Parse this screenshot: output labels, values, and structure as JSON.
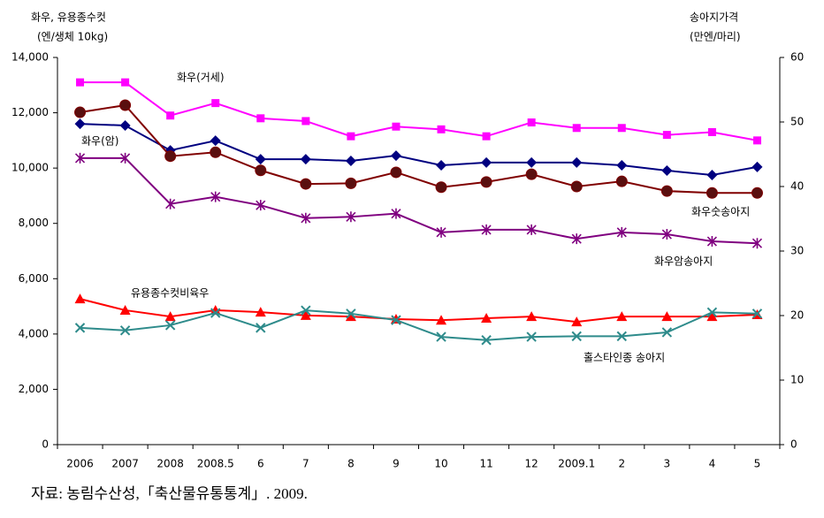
{
  "chart_data": {
    "type": "line",
    "y_label": [
      "화우, 유용종수컷",
      "(엔/생체 10kg)"
    ],
    "y2_label": [
      "송아지가격",
      "(만엔/마리)"
    ],
    "source": "자료: 농림수산성,「축산물유통통계」. 2009.",
    "categories": [
      "2006",
      "2007",
      "2008",
      "2008.5",
      "6",
      "7",
      "8",
      "9",
      "10",
      "11",
      "12",
      "2009.1",
      "2",
      "3",
      "4",
      "5"
    ],
    "ylim": [
      0,
      14000
    ],
    "yticks": [
      0,
      {
        "value": 2000,
        "label": "2,000"
      },
      {
        "value": 4000,
        "label": "4,000"
      },
      {
        "value": 6000,
        "label": "6,000"
      },
      {
        "value": 8000,
        "label": "8,000"
      },
      {
        "value": 10000,
        "label": "10,000"
      },
      {
        "value": 12000,
        "label": "12,000"
      },
      {
        "value": 14000,
        "label": "14,000"
      }
    ],
    "y2lim": [
      0,
      60
    ],
    "y2ticks": [
      0,
      10,
      20,
      30,
      40,
      50,
      60
    ],
    "series": [
      {
        "name": "화우(거세)",
        "color": "#ff00ff",
        "marker": "square",
        "values": [
          13100,
          13100,
          11900,
          12350,
          11800,
          11700,
          11150,
          11500,
          11400,
          11150,
          11650,
          11450,
          11450,
          11200,
          11300,
          11000
        ]
      },
      {
        "name": "화우(암)",
        "color": "#000080",
        "marker": "diamond",
        "values": [
          11600,
          11540,
          10640,
          10990,
          10320,
          10320,
          10260,
          10450,
          10100,
          10200,
          10200,
          10200,
          10100,
          9910,
          9750,
          10040
        ]
      },
      {
        "name": "화우숫송아지",
        "color": "#800000",
        "marker": "circle",
        "axis": "y2",
        "values": [
          51.5,
          52.6,
          44.7,
          45.3,
          42.5,
          40.4,
          40.5,
          42.2,
          39.9,
          40.7,
          41.9,
          40.0,
          40.8,
          39.3,
          39.0,
          39.0
        ]
      },
      {
        "name": "화우암송아지",
        "color": "#800080",
        "marker": "asterisk",
        "axis": "y2",
        "values": [
          44.4,
          44.4,
          37.3,
          38.4,
          37.1,
          35.1,
          35.3,
          35.8,
          32.9,
          33.3,
          33.3,
          31.9,
          32.9,
          32.6,
          31.5,
          31.2
        ]
      },
      {
        "name": "유용종수컷비육우",
        "color": "#ff0000",
        "marker": "triangle",
        "values": [
          5270,
          4860,
          4630,
          4860,
          4790,
          4670,
          4630,
          4540,
          4500,
          4570,
          4630,
          4440,
          4630,
          4630,
          4630,
          4700
        ]
      },
      {
        "name": "홀스타인종 송아지",
        "color": "#2e8b8b",
        "marker": "x",
        "axis": "y2",
        "values": [
          18.1,
          17.7,
          18.5,
          20.4,
          18.1,
          20.8,
          20.3,
          19.3,
          16.7,
          16.2,
          16.7,
          16.8,
          16.8,
          17.4,
          20.5,
          20.3
        ]
      }
    ]
  }
}
